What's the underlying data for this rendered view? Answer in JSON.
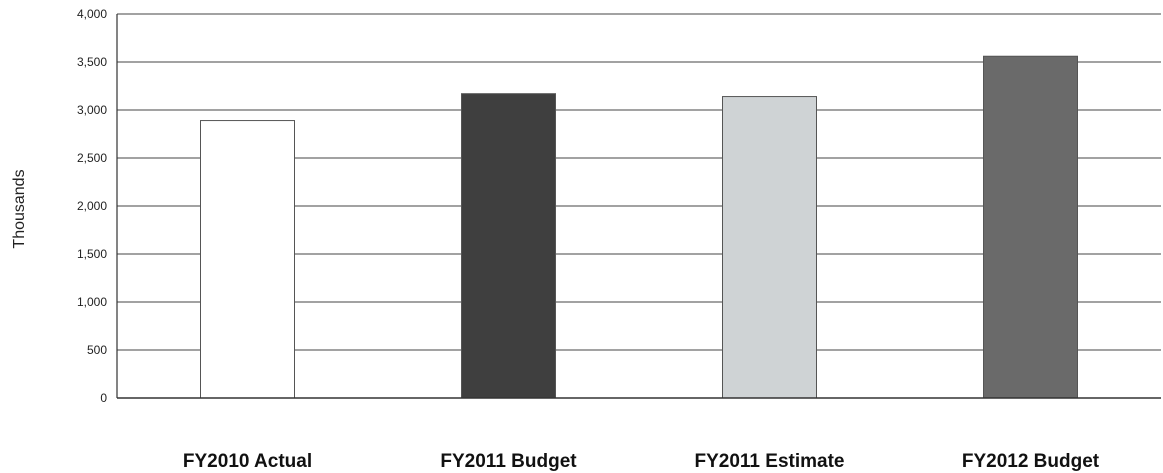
{
  "chart_data": {
    "type": "bar",
    "title": "",
    "xlabel": "",
    "ylabel": "Thousands",
    "ylim": [
      0,
      4000
    ],
    "yticks": [
      0,
      500,
      1000,
      1500,
      2000,
      2500,
      3000,
      3500,
      4000
    ],
    "ytick_labels": [
      "0",
      "500",
      "1,000",
      "1,500",
      "2,000",
      "2,500",
      "3,000",
      "3,500",
      "4,000"
    ],
    "grid": true,
    "legend": "none",
    "categories": [
      "FY2010 Actual",
      "FY2011 Budget",
      "FY2011 Estimate",
      "FY2012 Budget"
    ],
    "values": [
      2890,
      3170,
      3140,
      3560
    ],
    "colors": [
      "#ffffff",
      "#3f3f3f",
      "#cfd3d5",
      "#6a6a6a"
    ]
  }
}
